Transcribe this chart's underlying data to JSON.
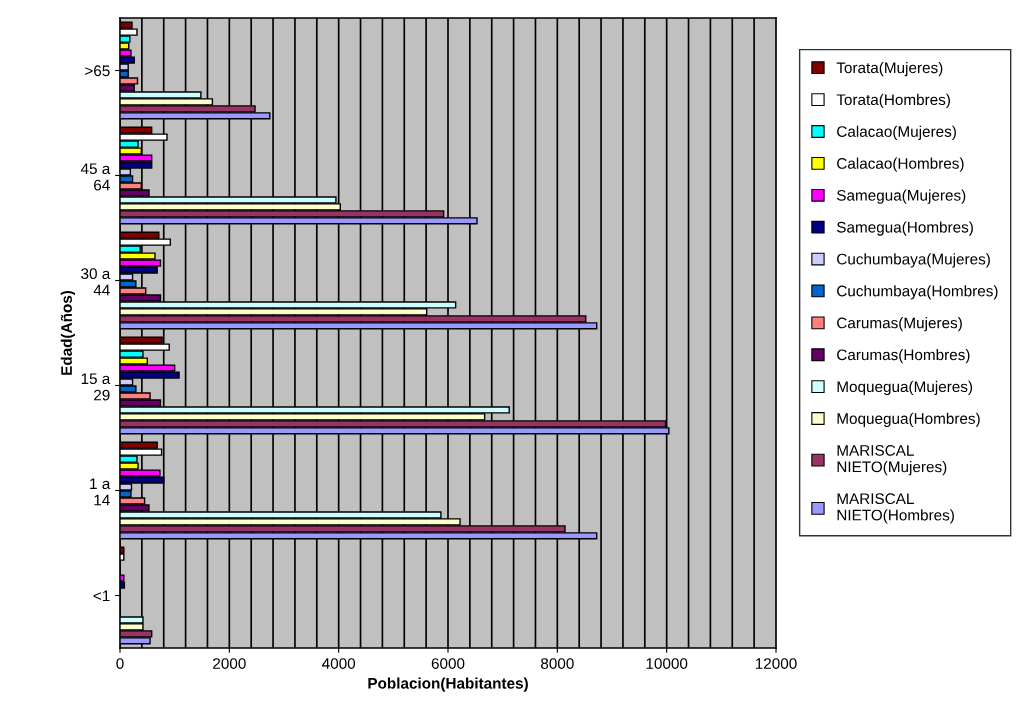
{
  "chart_data": {
    "type": "bar",
    "orientation": "horizontal",
    "xlabel": "Poblacion(Habitantes)",
    "ylabel": "Edad(Años)",
    "categories": [
      ">65",
      "45 a 64",
      "30 a 44",
      "15 a 29",
      "1 a 14",
      "<1"
    ],
    "xlim": [
      0,
      12000
    ],
    "xticks": [
      0,
      2000,
      4000,
      6000,
      8000,
      10000,
      12000
    ],
    "grid": "x",
    "legend": "right",
    "series": [
      {
        "name": "Torata(Mujeres)",
        "color": "#800000",
        "values": [
          220,
          580,
          710,
          770,
          680,
          70
        ]
      },
      {
        "name": "Torata(Hombres)",
        "color": "#ffffff",
        "values": [
          310,
          860,
          920,
          900,
          760,
          70
        ]
      },
      {
        "name": "Calacao(Mujeres)",
        "color": "#00ffff",
        "values": [
          180,
          330,
          370,
          420,
          310,
          null
        ]
      },
      {
        "name": "Calacao(Hombres)",
        "color": "#ffff00",
        "values": [
          160,
          390,
          640,
          500,
          330,
          null
        ]
      },
      {
        "name": "Samegua(Mujeres)",
        "color": "#ff00ff",
        "values": [
          200,
          580,
          740,
          1000,
          730,
          70
        ]
      },
      {
        "name": "Samegua(Hombres)",
        "color": "#000080",
        "values": [
          260,
          580,
          680,
          1080,
          800,
          80
        ]
      },
      {
        "name": "Cuchumbaya(Mujeres)",
        "color": "#ccccff",
        "values": [
          150,
          190,
          230,
          230,
          210,
          null
        ]
      },
      {
        "name": "Cuchumbaya(Hombres)",
        "color": "#0066cc",
        "values": [
          150,
          230,
          290,
          290,
          200,
          null
        ]
      },
      {
        "name": "Carumas(Mujeres)",
        "color": "#ff8080",
        "values": [
          320,
          390,
          470,
          550,
          450,
          null
        ]
      },
      {
        "name": "Carumas(Hombres)",
        "color": "#660066",
        "values": [
          260,
          530,
          740,
          740,
          530,
          null
        ]
      },
      {
        "name": "Moquegua(Mujeres)",
        "color": "#ccffff",
        "values": [
          1480,
          3950,
          6140,
          7120,
          5870,
          420
        ]
      },
      {
        "name": "Moquegua(Hombres)",
        "color": "#ffffcc",
        "values": [
          1690,
          4030,
          5610,
          6670,
          6220,
          420
        ]
      },
      {
        "name": "MARISCAL NIETO(Mujeres)",
        "color": "#993366",
        "values": [
          2470,
          5920,
          8520,
          9980,
          8140,
          580
        ]
      },
      {
        "name": "MARISCAL NIETO(Hombres)",
        "color": "#9999ff",
        "values": [
          2740,
          6530,
          8720,
          10040,
          8720,
          550
        ]
      }
    ]
  }
}
